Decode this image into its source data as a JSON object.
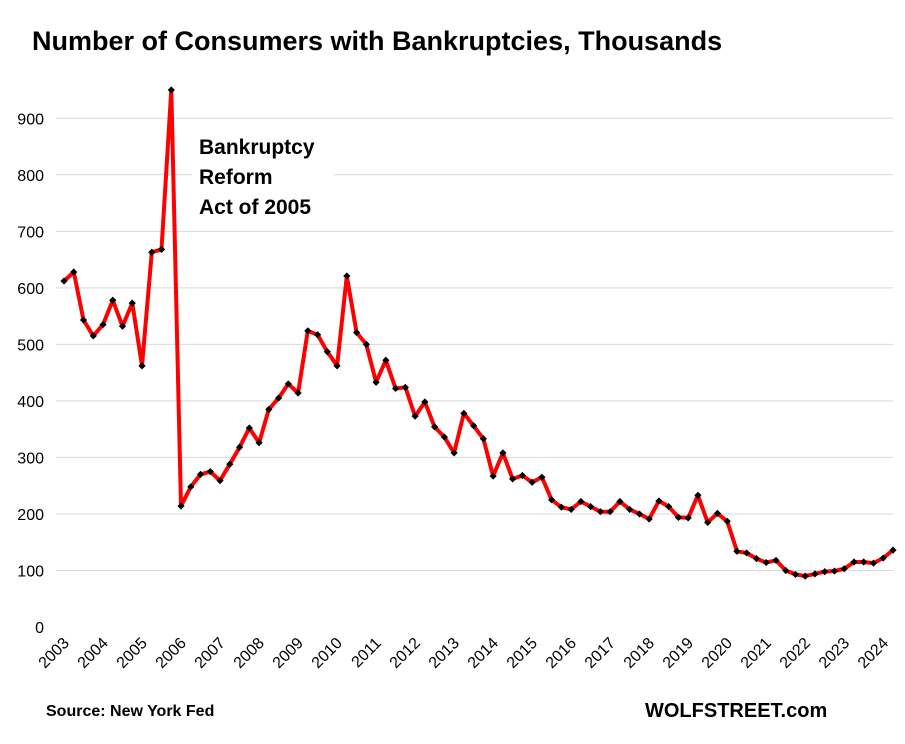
{
  "chart_data": {
    "type": "line",
    "title": "Number of Consumers with Bankruptcies, Thousands",
    "xlabel": "",
    "ylabel": "",
    "ylim": [
      0,
      950
    ],
    "yticks": [
      "0",
      "100",
      "200",
      "300",
      "400",
      "500",
      "600",
      "700",
      "800",
      "900"
    ],
    "x_tick_labels": [
      "2003",
      "2004",
      "2005",
      "2006",
      "2007",
      "2008",
      "2009",
      "2010",
      "2011",
      "2012",
      "2013",
      "2014",
      "2015",
      "2016",
      "2017",
      "2018",
      "2019",
      "2020",
      "2021",
      "2022",
      "2023",
      "2024"
    ],
    "grid": true,
    "line_color": "#ff0000",
    "marker_color": "#000000",
    "annotation": [
      "Bankruptcy",
      "Reform",
      "Act of 2005"
    ],
    "series": [
      {
        "quarters": [
          "2003Q1",
          "2003Q2",
          "2003Q3",
          "2003Q4",
          "2004Q1",
          "2004Q2",
          "2004Q3",
          "2004Q4",
          "2005Q1",
          "2005Q2",
          "2005Q3",
          "2005Q4",
          "2006Q1",
          "2006Q2",
          "2006Q3",
          "2006Q4",
          "2007Q1",
          "2007Q2",
          "2007Q3",
          "2007Q4",
          "2008Q1",
          "2008Q2",
          "2008Q3",
          "2008Q4",
          "2009Q1",
          "2009Q2",
          "2009Q3",
          "2009Q4",
          "2010Q1",
          "2010Q2",
          "2010Q3",
          "2010Q4",
          "2011Q1",
          "2011Q2",
          "2011Q3",
          "2011Q4",
          "2012Q1",
          "2012Q2",
          "2012Q3",
          "2012Q4",
          "2013Q1",
          "2013Q2",
          "2013Q3",
          "2013Q4",
          "2014Q1",
          "2014Q2",
          "2014Q3",
          "2014Q4",
          "2015Q1",
          "2015Q2",
          "2015Q3",
          "2015Q4",
          "2016Q1",
          "2016Q2",
          "2016Q3",
          "2016Q4",
          "2017Q1",
          "2017Q2",
          "2017Q3",
          "2017Q4",
          "2018Q1",
          "2018Q2",
          "2018Q3",
          "2018Q4",
          "2019Q1",
          "2019Q2",
          "2019Q3",
          "2019Q4",
          "2020Q1",
          "2020Q2",
          "2020Q3",
          "2020Q4",
          "2021Q1",
          "2021Q2",
          "2021Q3",
          "2021Q4",
          "2022Q1",
          "2022Q2",
          "2022Q3",
          "2022Q4",
          "2023Q1",
          "2023Q2",
          "2023Q3",
          "2023Q4",
          "2024Q1",
          "2024Q2"
        ],
        "values": [
          612,
          628,
          543,
          515,
          535,
          578,
          532,
          573,
          462,
          663,
          668,
          950,
          214,
          248,
          270,
          275,
          259,
          288,
          318,
          352,
          326,
          385,
          405,
          430,
          414,
          524,
          517,
          487,
          462,
          621,
          521,
          500,
          433,
          472,
          422,
          424,
          373,
          398,
          354,
          336,
          308,
          378,
          356,
          333,
          267,
          308,
          262,
          268,
          256,
          265,
          225,
          212,
          208,
          222,
          213,
          204,
          204,
          222,
          208,
          200,
          191,
          223,
          213,
          194,
          193,
          233,
          185,
          201,
          187,
          134,
          131,
          121,
          114,
          118,
          100,
          93,
          90,
          94,
          98,
          99,
          103,
          115,
          115,
          113,
          122,
          136
        ]
      }
    ]
  },
  "footer": {
    "source": "Source: New York Fed",
    "brand": "WOLFSTREET.com"
  }
}
